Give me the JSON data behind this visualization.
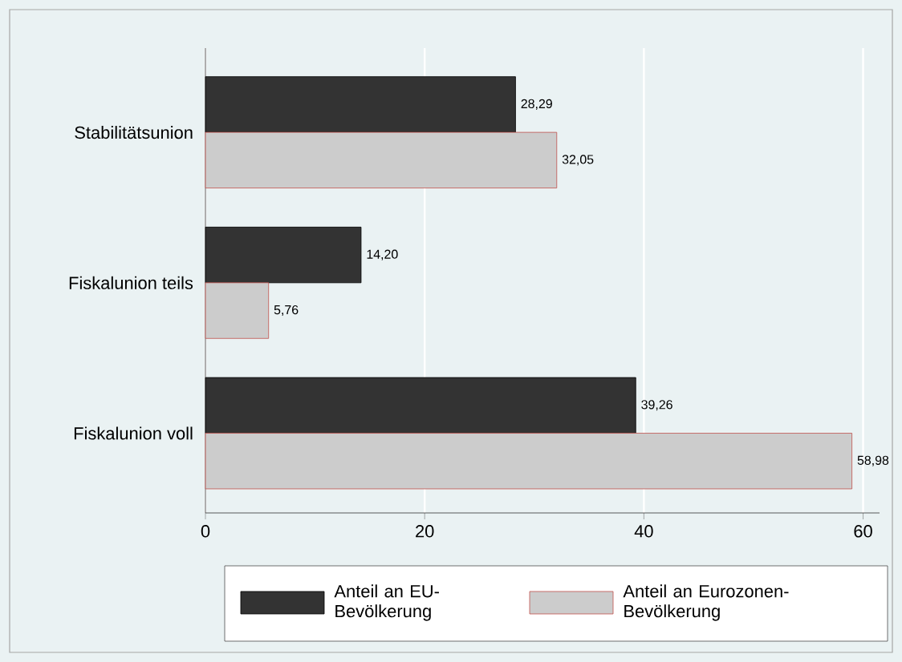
{
  "chart_data": {
    "type": "bar",
    "orientation": "horizontal",
    "categories": [
      "Stabilitätsunion",
      "Fiskalunion teils",
      "Fiskalunion voll"
    ],
    "series": [
      {
        "name": "Anteil an EU-Bevölkerung",
        "color": "#333333",
        "values": [
          28.29,
          14.2,
          39.26
        ],
        "value_labels": [
          "28,29",
          "14,20",
          "39,26"
        ]
      },
      {
        "name": "Anteil an Eurozonen-Bevölkerung",
        "color": "#cccccc",
        "values": [
          32.05,
          5.76,
          58.98
        ],
        "value_labels": [
          "32,05",
          "5,76",
          "58,98"
        ]
      }
    ],
    "xlim": [
      0,
      61.5
    ],
    "xticks": [
      0,
      20,
      40,
      60
    ],
    "grid": "x",
    "legend": "bottom"
  }
}
